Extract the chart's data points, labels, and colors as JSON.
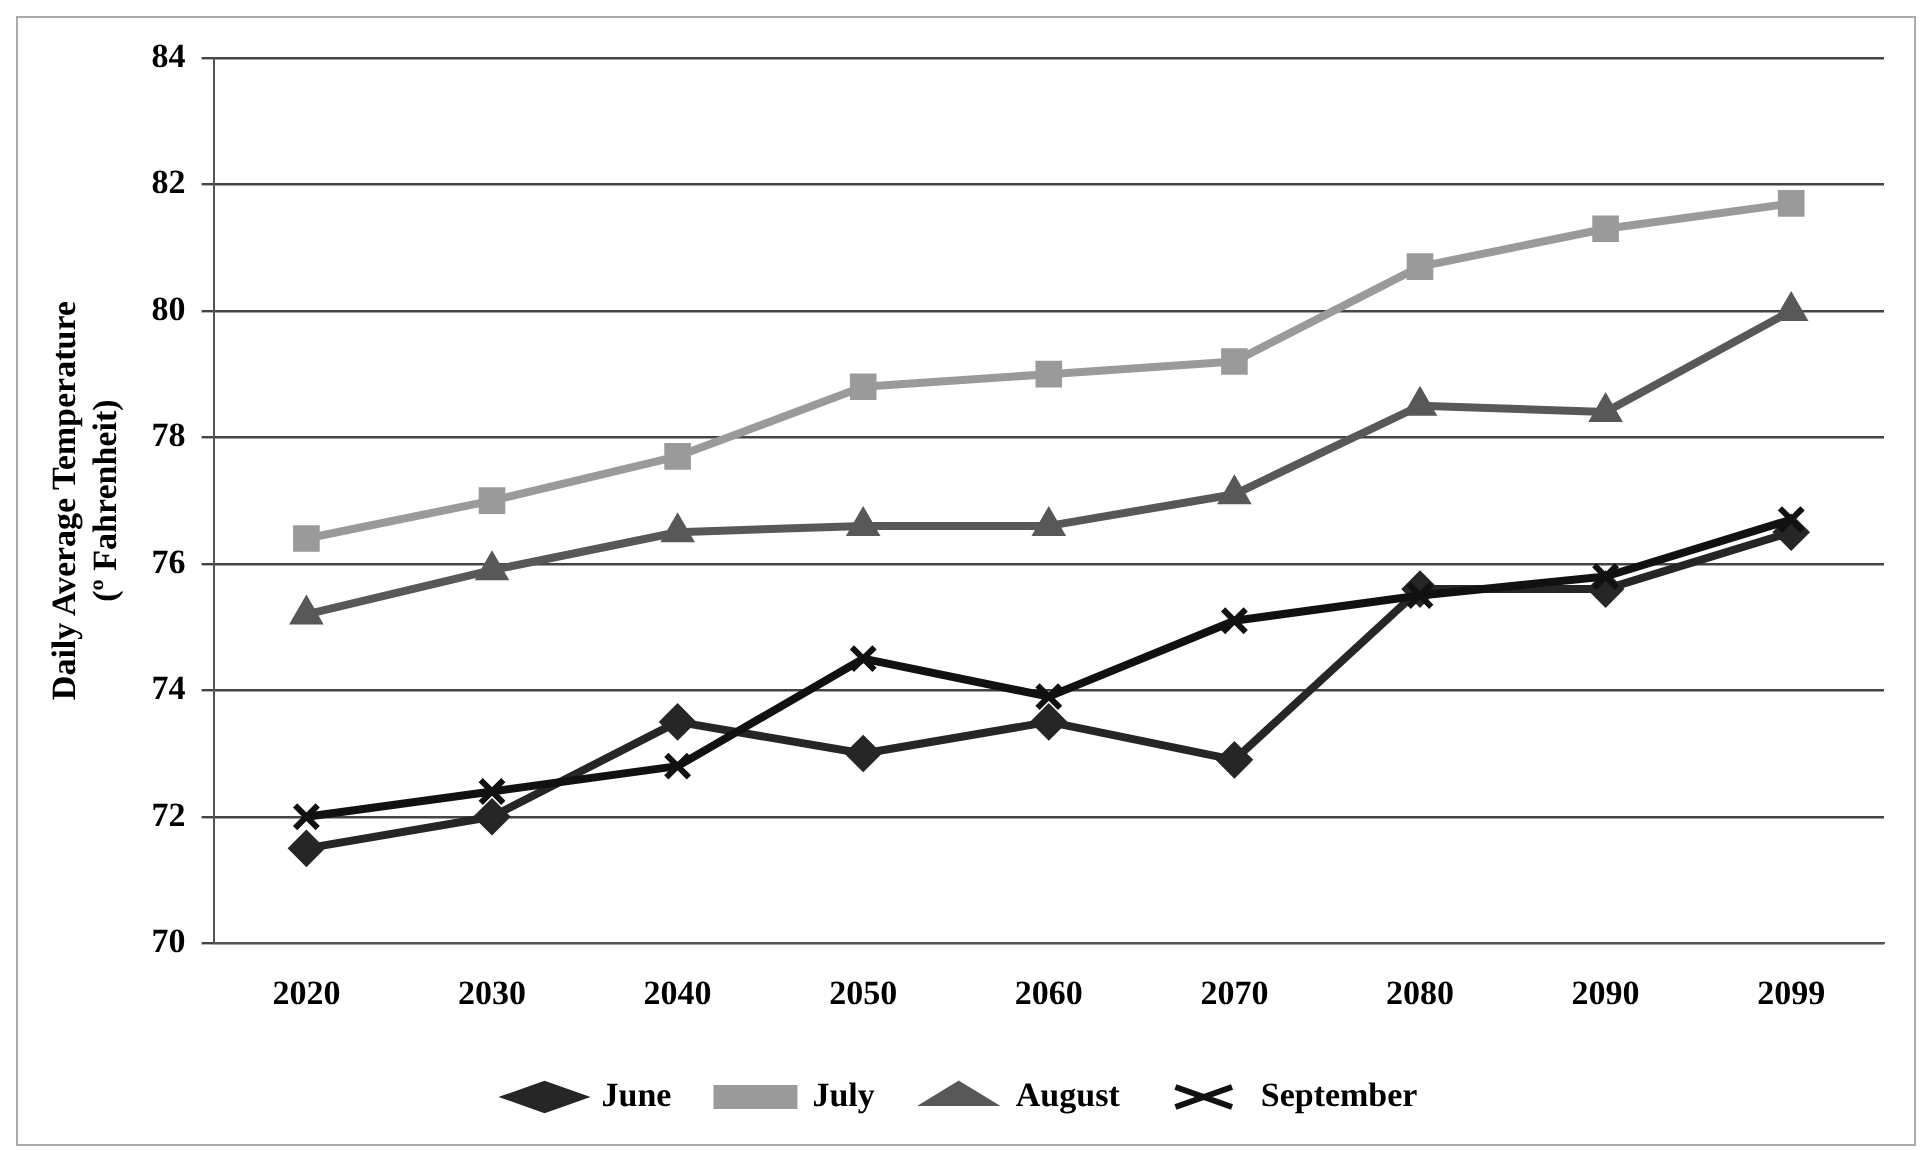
{
  "chart_data": {
    "type": "line",
    "ylabel": "Daily Average Temperature\n(º Fahrenheit)",
    "categories": [
      "2020",
      "2030",
      "2040",
      "2050",
      "2060",
      "2070",
      "2080",
      "2090",
      "2099"
    ],
    "series": [
      {
        "name": "June",
        "color": "#262626",
        "marker": "diamond",
        "values": [
          71.5,
          72.0,
          73.5,
          73.0,
          73.5,
          72.9,
          75.6,
          75.6,
          76.5
        ]
      },
      {
        "name": "July",
        "color": "#9a9a9a",
        "marker": "square",
        "values": [
          76.4,
          77.0,
          77.7,
          78.8,
          79.0,
          79.2,
          80.7,
          81.3,
          81.7
        ]
      },
      {
        "name": "August",
        "color": "#585858",
        "marker": "triangle",
        "values": [
          75.2,
          75.9,
          76.5,
          76.6,
          76.6,
          77.1,
          78.5,
          78.4,
          80.0
        ]
      },
      {
        "name": "September",
        "color": "#111111",
        "marker": "cross",
        "values": [
          72.0,
          72.4,
          72.8,
          74.5,
          73.9,
          75.1,
          75.5,
          75.8,
          76.7
        ]
      }
    ],
    "ylim": [
      70,
      84
    ],
    "yticks": [
      70,
      72,
      74,
      76,
      78,
      80,
      82,
      84
    ],
    "grid": "y",
    "legend": "bottom"
  }
}
